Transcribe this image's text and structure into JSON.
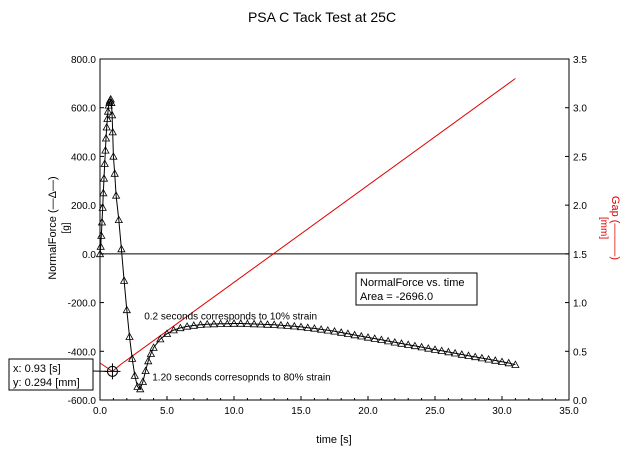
{
  "colors": {
    "force": "#000000",
    "gap": "#e00000",
    "axis": "#000000",
    "zero_line": "#000000"
  },
  "chart_data": {
    "type": "line",
    "title": "PSA C Tack Test at 25C",
    "xlabel": "time [s]",
    "xlim": [
      0.0,
      35.0
    ],
    "xticks": [
      "0.0",
      "5.0",
      "10.0",
      "15.0",
      "20.0",
      "25.0",
      "30.0",
      "35.0"
    ],
    "ylabel_left": [
      "NormalForce (",
      "—",
      "Δ",
      "—",
      ")"
    ],
    "ylabel_left_unit": "[g]",
    "ylim_left": [
      -600.0,
      800.0
    ],
    "yticks_left": [
      "-600.0",
      "-400.0",
      "-200.0",
      "0.0",
      "200.0",
      "400.0",
      "600.0",
      "800.0"
    ],
    "ylabel_right": [
      "Gap (",
      "———",
      ")"
    ],
    "ylabel_right_unit": "[mm]",
    "ylim_right": [
      0.0,
      3.5
    ],
    "yticks_right": [
      "0.0",
      "0.5",
      "1.0",
      "1.5",
      "2.0",
      "2.5",
      "3.0",
      "3.5"
    ],
    "grid": false,
    "series": [
      {
        "name": "NormalForce",
        "axis": "left",
        "marker": "triangle",
        "x": [
          0.0,
          0.05,
          0.1,
          0.15,
          0.2,
          0.25,
          0.3,
          0.35,
          0.4,
          0.45,
          0.5,
          0.55,
          0.6,
          0.65,
          0.7,
          0.75,
          0.8,
          0.85,
          0.9,
          0.95,
          1.0,
          1.1,
          1.2,
          1.4,
          1.6,
          1.8,
          2.0,
          2.2,
          2.4,
          2.6,
          2.8,
          3.0,
          3.2,
          3.4,
          3.6,
          3.8,
          4.0,
          4.5,
          5.0,
          5.5,
          6.0,
          6.5,
          7.0,
          7.5,
          8.0,
          8.5,
          9.0,
          9.5,
          10.0,
          10.5,
          11.0,
          11.5,
          12.0,
          12.5,
          13.0,
          13.5,
          14.0,
          14.5,
          15.0,
          15.5,
          16.0,
          16.5,
          17.0,
          17.5,
          18.0,
          18.5,
          19.0,
          19.5,
          20.0,
          20.5,
          21.0,
          21.5,
          22.0,
          22.5,
          23.0,
          23.5,
          24.0,
          24.5,
          25.0,
          25.5,
          26.0,
          26.5,
          27.0,
          27.5,
          28.0,
          28.5,
          29.0,
          29.5,
          30.0,
          30.5,
          31.0
        ],
        "y": [
          0,
          30,
          75,
          130,
          190,
          250,
          310,
          370,
          425,
          475,
          520,
          555,
          585,
          610,
          622,
          630,
          635,
          620,
          570,
          500,
          400,
          330,
          240,
          140,
          20,
          -110,
          -230,
          -340,
          -430,
          -500,
          -545,
          -555,
          -525,
          -480,
          -440,
          -410,
          -385,
          -350,
          -328,
          -313,
          -304,
          -298,
          -294,
          -291,
          -289,
          -288,
          -287,
          -287,
          -286,
          -286,
          -287,
          -288,
          -289,
          -290,
          -291,
          -293,
          -295,
          -297,
          -300,
          -303,
          -306,
          -310,
          -314,
          -318,
          -323,
          -328,
          -333,
          -338,
          -343,
          -348,
          -353,
          -358,
          -363,
          -368,
          -373,
          -378,
          -383,
          -388,
          -393,
          -398,
          -403,
          -408,
          -413,
          -418,
          -423,
          -428,
          -433,
          -438,
          -443,
          -448,
          -455
        ]
      },
      {
        "name": "Gap",
        "axis": "right",
        "marker": "none",
        "x": [
          0.0,
          0.93,
          1.5,
          31.0
        ],
        "y": [
          0.38,
          0.294,
          0.36,
          3.3
        ]
      }
    ],
    "annotations": [
      {
        "text": "0.2 seconds corresponds to 10% strain",
        "x": 3.3,
        "y_left": -270
      },
      {
        "text": "1.20 seconds corresopnds to 80% strain",
        "x": 3.9,
        "y_left": -520
      }
    ],
    "info_box": {
      "line1": "NormalForce vs. time",
      "line2": "Area = -2696.0"
    },
    "cursor": {
      "x_value": 0.93,
      "y_value": 0.294,
      "x_text": "x: 0.93 [s]",
      "y_text": "y: 0.294 [mm]"
    }
  }
}
